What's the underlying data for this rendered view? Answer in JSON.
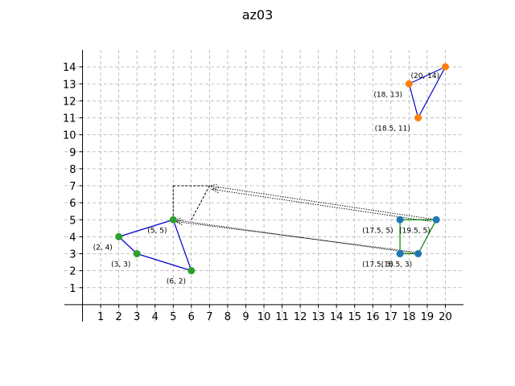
{
  "chart_data": {
    "type": "scatter",
    "title": "az03",
    "xlabel": "",
    "ylabel": "",
    "xlim": [
      -1,
      21
    ],
    "ylim": [
      -1,
      15
    ],
    "x_ticks": [
      1,
      2,
      3,
      4,
      5,
      6,
      7,
      8,
      9,
      10,
      11,
      12,
      13,
      14,
      15,
      16,
      17,
      18,
      19,
      20
    ],
    "y_ticks": [
      1,
      2,
      3,
      4,
      5,
      6,
      7,
      8,
      9,
      10,
      11,
      12,
      13,
      14
    ],
    "grid": true,
    "polygons": [
      {
        "name": "orange",
        "color": "#ff7f0e",
        "edge_color": "#0000cc",
        "points": [
          {
            "x": 20,
            "y": 14,
            "label": "(20, 14)"
          },
          {
            "x": 18,
            "y": 13,
            "label": "(18, 13)"
          },
          {
            "x": 18.5,
            "y": 11,
            "label": "(18.5, 11)"
          }
        ],
        "edges": [
          [
            0,
            1
          ],
          [
            1,
            2
          ],
          [
            2,
            0
          ]
        ]
      },
      {
        "name": "green",
        "color": "#2ca02c",
        "edge_color": "#0000cc",
        "points": [
          {
            "x": 5,
            "y": 5,
            "label": "(5, 5)"
          },
          {
            "x": 2,
            "y": 4,
            "label": "(2, 4)"
          },
          {
            "x": 3,
            "y": 3,
            "label": "(3, 3)"
          },
          {
            "x": 6,
            "y": 2,
            "label": "(6, 2)"
          }
        ],
        "edges": [
          [
            0,
            1
          ],
          [
            1,
            2
          ],
          [
            2,
            3
          ],
          [
            3,
            0
          ]
        ]
      },
      {
        "name": "blue",
        "color": "#1f77b4",
        "edge_color": "#008000",
        "points": [
          {
            "x": 17.5,
            "y": 5,
            "label": "(17.5, 5)"
          },
          {
            "x": 19.5,
            "y": 5,
            "label": "(19.5, 5)"
          },
          {
            "x": 18.5,
            "y": 3,
            "label": "(18.5, 3)"
          },
          {
            "x": 17.5,
            "y": 3,
            "label": "(17.5, 3)"
          }
        ],
        "edges": [
          [
            0,
            1
          ],
          [
            1,
            2
          ],
          [
            2,
            3
          ],
          [
            3,
            0
          ]
        ]
      }
    ],
    "dashed_lines": [
      {
        "from": [
          5,
          5
        ],
        "to": [
          5,
          7
        ]
      },
      {
        "from": [
          6,
          5
        ],
        "to": [
          7,
          7
        ]
      },
      {
        "from": [
          5,
          7
        ],
        "to": [
          7,
          7
        ]
      }
    ],
    "arrows": [
      {
        "from": [
          19.5,
          5
        ],
        "to": [
          7,
          7
        ]
      },
      {
        "from": [
          19.2,
          4.9
        ],
        "to": [
          7.1,
          6.8
        ]
      },
      {
        "from": [
          18.5,
          3
        ],
        "to": [
          5,
          5
        ]
      },
      {
        "from": [
          18.3,
          3.1
        ],
        "to": [
          5.1,
          4.9
        ]
      }
    ]
  }
}
